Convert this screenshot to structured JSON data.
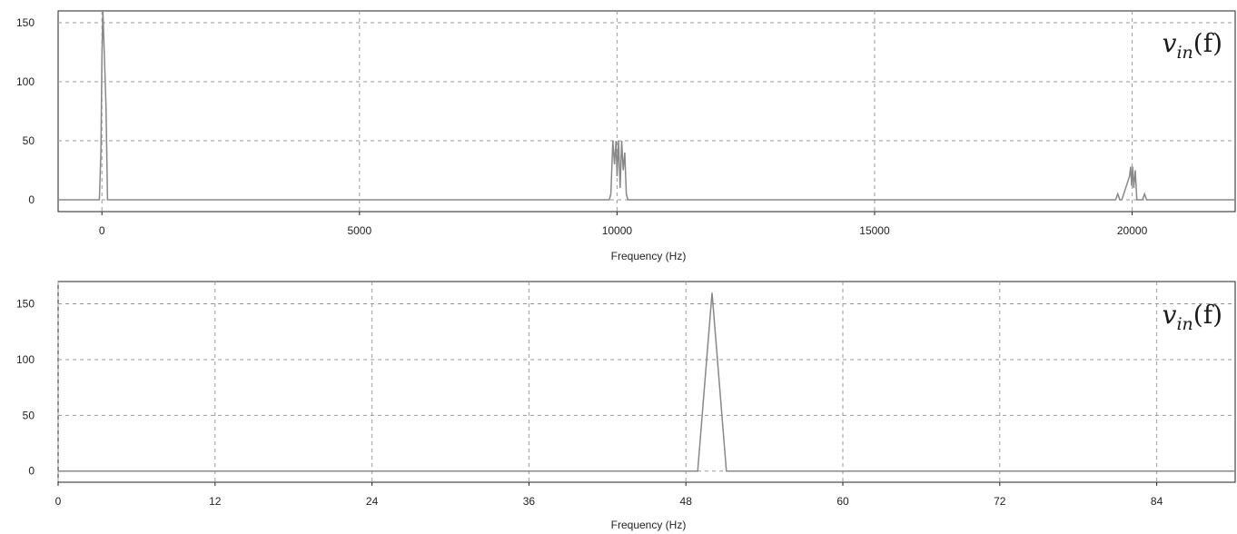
{
  "colors": {
    "trace": "#888888",
    "grid": "#9a9a9a",
    "frame": "#222222",
    "background": "#ffffff"
  },
  "chart_data": [
    {
      "type": "line",
      "xlabel": "Frequency (Hz)",
      "ylabel": "",
      "xlim": [
        -850,
        22000
      ],
      "ylim": [
        -10,
        160
      ],
      "x_ticks": [
        0,
        5000,
        10000,
        15000,
        20000
      ],
      "x_tick_labels": [
        "0",
        "5000",
        "10000",
        "15000",
        "20000"
      ],
      "y_ticks": [
        0,
        50,
        100,
        150
      ],
      "y_tick_labels": [
        "0",
        "50",
        "100",
        "150"
      ],
      "grid": true,
      "annotation": {
        "base": "v",
        "sub": "in",
        "arg": "(f)"
      },
      "series": [
        {
          "x": [
            -850,
            -50,
            -20,
            0,
            20,
            50,
            80,
            110,
            140,
            9850,
            9880,
            9920,
            9950,
            9980,
            10000,
            10030,
            10060,
            10090,
            10120,
            10150,
            10180,
            10210,
            19680,
            19720,
            19760,
            19800,
            19950,
            19970,
            19990,
            20010,
            20030,
            20060,
            20090,
            20200,
            20240,
            20280,
            22000
          ],
          "y": [
            0,
            0,
            40,
            120,
            160,
            120,
            80,
            0,
            0,
            0,
            5,
            50,
            30,
            50,
            20,
            50,
            10,
            50,
            25,
            40,
            5,
            0,
            0,
            5,
            0,
            0,
            20,
            28,
            12,
            28,
            10,
            25,
            0,
            0,
            5,
            0,
            0
          ]
        }
      ]
    },
    {
      "type": "line",
      "xlabel": "Frequency (Hz)",
      "ylabel": "",
      "xlim": [
        0,
        90
      ],
      "ylim": [
        -10,
        170
      ],
      "x_ticks": [
        0,
        12,
        24,
        36,
        48,
        60,
        72,
        84
      ],
      "x_tick_labels": [
        "0",
        "12",
        "24",
        "36",
        "48",
        "60",
        "72",
        "84"
      ],
      "y_ticks": [
        0,
        50,
        100,
        150
      ],
      "y_tick_labels": [
        "0",
        "50",
        "100",
        "150"
      ],
      "grid": true,
      "annotation": {
        "base": "v",
        "sub": "in",
        "arg": "(f)"
      },
      "series": [
        {
          "x": [
            0,
            48.9,
            50,
            51.1,
            90
          ],
          "y": [
            0,
            0,
            160,
            0,
            0
          ]
        }
      ]
    }
  ]
}
